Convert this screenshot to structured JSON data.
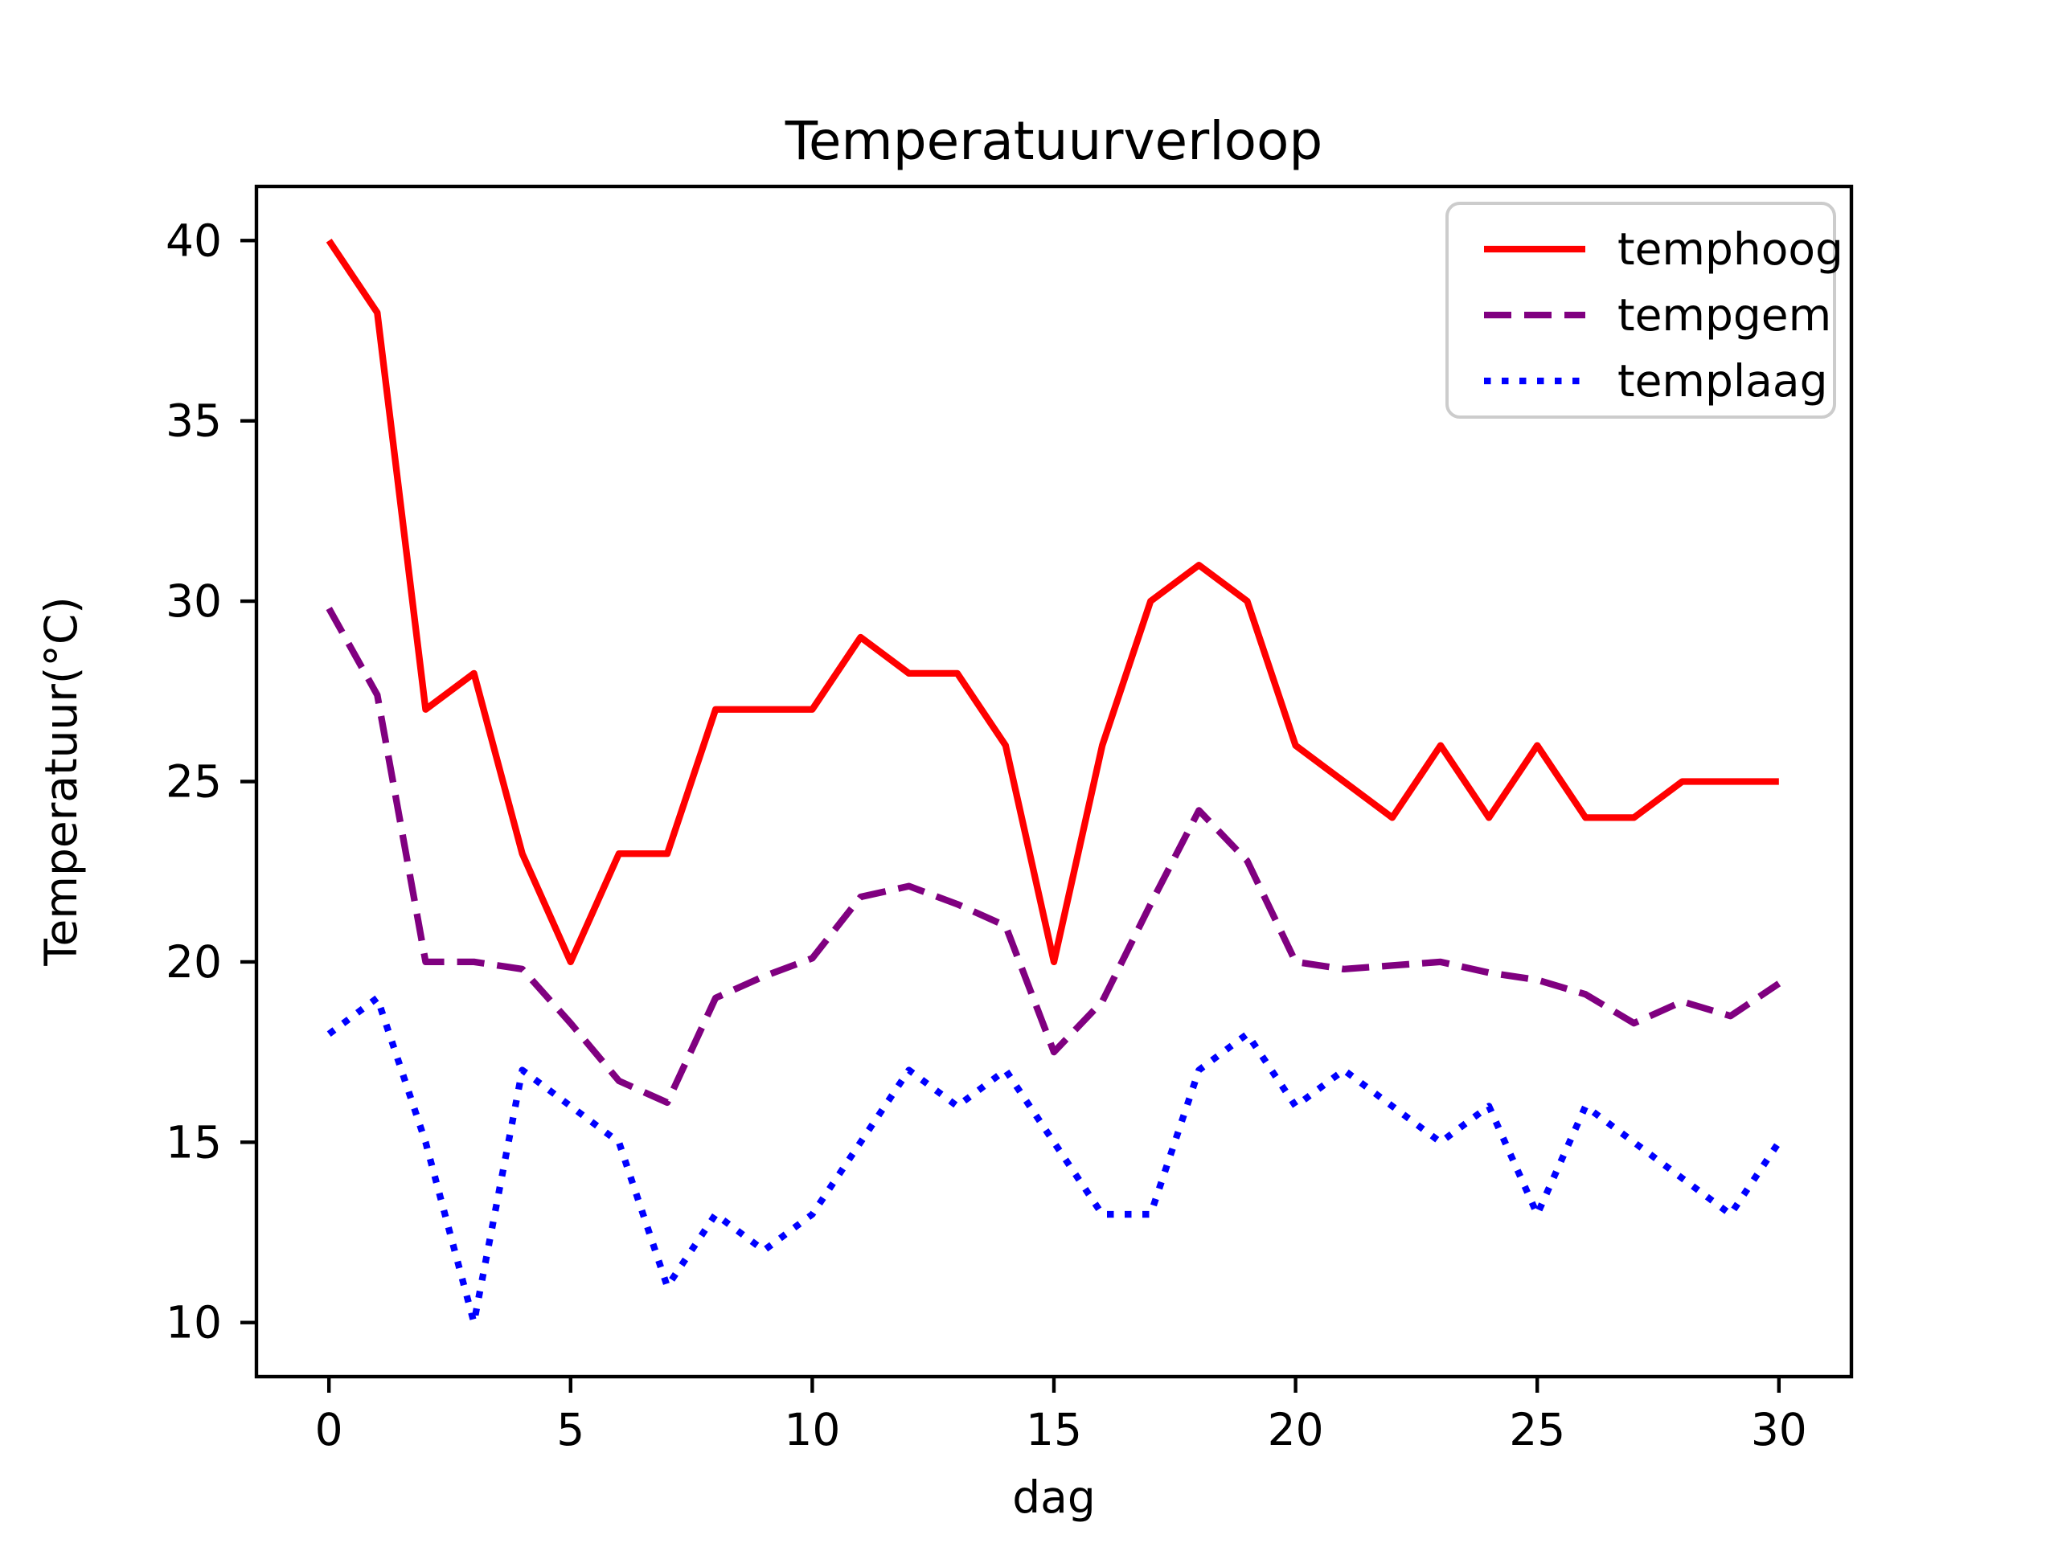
{
  "chart_data": {
    "type": "line",
    "title": "Temperatuurverloop",
    "xlabel": "dag",
    "ylabel": "Temperatuur(°C)",
    "x": [
      0,
      1,
      2,
      3,
      4,
      5,
      6,
      7,
      8,
      9,
      10,
      11,
      12,
      13,
      14,
      15,
      16,
      17,
      18,
      19,
      20,
      21,
      22,
      23,
      24,
      25,
      26,
      27,
      28,
      29,
      30
    ],
    "series": [
      {
        "name": "temphoog",
        "color": "#ff0000",
        "style": "solid",
        "values": [
          40,
          38,
          27,
          28,
          23,
          20,
          23,
          23,
          27,
          27,
          27,
          29,
          28,
          28,
          26,
          20,
          26,
          30,
          31,
          30,
          26,
          25,
          24,
          26,
          24,
          26,
          24,
          24,
          25,
          25,
          25
        ]
      },
      {
        "name": "tempgem",
        "color": "#800080",
        "style": "dashed",
        "values": [
          29.8,
          27.4,
          20.0,
          20.0,
          19.8,
          18.3,
          16.7,
          16.1,
          19.0,
          19.6,
          20.1,
          21.8,
          22.1,
          21.6,
          21.0,
          17.5,
          18.9,
          21.6,
          24.2,
          22.8,
          20.0,
          19.8,
          19.9,
          20.0,
          19.7,
          19.5,
          19.1,
          18.3,
          18.9,
          18.5,
          19.4
        ]
      },
      {
        "name": "templaag",
        "color": "#0000ff",
        "style": "dotted",
        "values": [
          18,
          19,
          15,
          10,
          17,
          16,
          15,
          11,
          13,
          12,
          13,
          15,
          17,
          16,
          17,
          15,
          13,
          13,
          17,
          18,
          16,
          17,
          16,
          15,
          16,
          13,
          16,
          15,
          14,
          13,
          15
        ]
      }
    ],
    "xlim": [
      -1.5,
      31.5
    ],
    "ylim": [
      8.5,
      41.5
    ],
    "xticks": [
      0,
      5,
      10,
      15,
      20,
      25,
      30
    ],
    "yticks": [
      10,
      15,
      20,
      25,
      30,
      35,
      40
    ],
    "grid": false,
    "legend_position": "upper right",
    "background_color": "#ffffff",
    "spine_color": "#000000",
    "legend_border_color": "#cccccc"
  }
}
